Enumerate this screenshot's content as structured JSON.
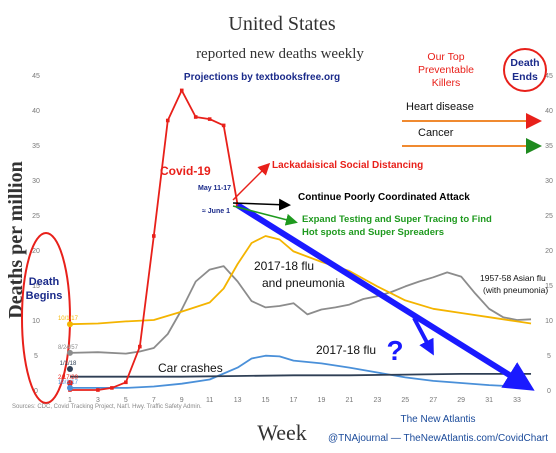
{
  "chart_data": {
    "type": "line",
    "title": "United States",
    "subtitle": "reported new deaths weekly",
    "projection_note": "Projections by textbooksfree.org",
    "xlabel": "Week",
    "ylabel": "Deaths per million",
    "xlim": [
      0,
      35
    ],
    "ylim": [
      0,
      45
    ],
    "x_ticks": [
      1,
      3,
      5,
      7,
      9,
      11,
      13,
      15,
      17,
      19,
      21,
      23,
      25,
      27,
      29,
      31,
      33
    ],
    "y_ticks": [
      0,
      5,
      10,
      15,
      20,
      25,
      30,
      35,
      40,
      45
    ],
    "grid": false,
    "series": [
      {
        "name": "Covid-19",
        "color": "#e8201a",
        "x": [
          1,
          3,
          4,
          5,
          6,
          7,
          8,
          9,
          10,
          11,
          12,
          13
        ],
        "y": [
          0,
          0,
          0.3,
          1.1,
          6.2,
          22,
          38.5,
          42.8,
          39,
          38.7,
          37.8,
          26.4
        ]
      },
      {
        "name": "2017-18 flu and pneumonia",
        "color": "#f4b400",
        "x": [
          1,
          3,
          5,
          7,
          9,
          11,
          12,
          13,
          14,
          15,
          16,
          17,
          19,
          21,
          23,
          25,
          27,
          29,
          31,
          33,
          34
        ],
        "y": [
          9.4,
          9.5,
          9.8,
          10.0,
          11.2,
          12.5,
          14.5,
          18.0,
          21.0,
          22.0,
          21.5,
          19.8,
          18.3,
          17.0,
          14.8,
          12.8,
          11.6,
          11.0,
          10.4,
          9.8,
          9.5
        ]
      },
      {
        "name": "1957-58 Asian flu (with pneumonia)",
        "color": "#8c8c8c",
        "x": [
          1,
          3,
          5,
          6,
          7,
          8,
          9,
          10,
          11,
          12,
          13,
          14,
          15,
          16,
          17,
          18,
          19,
          20,
          21,
          22,
          23,
          24,
          25,
          26,
          27,
          28,
          29,
          30,
          31,
          32,
          33,
          34
        ],
        "y": [
          5.3,
          5.4,
          5.2,
          5.5,
          6.0,
          8.0,
          11.5,
          15.5,
          17.2,
          17.7,
          15.5,
          12.7,
          11.8,
          12.0,
          12.4,
          10.8,
          11.5,
          11.8,
          12.2,
          13.0,
          13.4,
          14.0,
          14.8,
          15.5,
          16.1,
          16.8,
          16.2,
          13.8,
          11.6,
          10.4,
          10.0,
          10.1
        ]
      },
      {
        "name": "2017-18 flu",
        "color": "#4a90d9",
        "x": [
          1,
          3,
          5,
          7,
          9,
          11,
          13,
          14,
          15,
          16,
          17,
          19,
          21,
          23,
          25,
          27,
          29,
          31,
          33,
          34
        ],
        "y": [
          0.3,
          0.3,
          0.3,
          0.5,
          0.9,
          1.5,
          3.2,
          4.5,
          4.9,
          4.8,
          4.2,
          3.8,
          3.2,
          2.5,
          1.8,
          1.3,
          1.0,
          0.7,
          0.5,
          0.5
        ]
      },
      {
        "name": "Car crashes",
        "color": "#2f3f55",
        "x": [
          1,
          5,
          9,
          13,
          17,
          21,
          25,
          29,
          33,
          34
        ],
        "y": [
          1.9,
          1.9,
          1.9,
          2.0,
          2.1,
          2.1,
          2.2,
          2.3,
          2.3,
          2.3
        ]
      }
    ],
    "projection": {
      "label": "Continue Poorly Coordinated Attack",
      "color": "#1a1aff",
      "x": [
        13,
        34
      ],
      "y": [
        26.4,
        0
      ]
    },
    "start_markers": [
      {
        "label": "10/1/17",
        "x": 1,
        "y": 9.4,
        "color": "#f4b400"
      },
      {
        "label": "8/24/57",
        "x": 1,
        "y": 5.3,
        "color": "#8c8c8c"
      },
      {
        "label": "1/1/18",
        "x": 1,
        "y": 3.0,
        "color": "#2f3f55"
      },
      {
        "label": "2/17/20",
        "x": 1,
        "y": 1.0,
        "color": "#e8201a"
      },
      {
        "label": "10/1/17",
        "x": 1,
        "y": 0.3,
        "color": "#4a90d9"
      }
    ],
    "annotations": {
      "covid_label": "Covid-19",
      "lackadaisical": "Lackadaisical Social Distancing",
      "continue": "Continue Poorly Coordinated Attack",
      "expand_line1": "Expand Testing and Super Tracing to Find",
      "expand_line2": "Hot spots and Super Spreaders",
      "may_label": "May 11-17",
      "june_label": "≈ June 1",
      "flu_pneu_line1": "2017-18 flu",
      "flu_pneu_line2": "and pneumonia",
      "asian_line1": "1957-58 Asian flu",
      "asian_line2": "(with pneumonia)",
      "flu_label": "2017-18 flu",
      "car_label": "Car crashes",
      "question": "?",
      "death_begins_line1": "Death",
      "death_begins_line2": "Begins",
      "death_ends_line1": "Death",
      "death_ends_line2": "Ends"
    },
    "legend_box": {
      "title_line1": "Our Top",
      "title_line2": "Preventable",
      "title_line3": "Killers",
      "items": [
        {
          "label": "Heart disease",
          "color": "#e8201a"
        },
        {
          "label": "Cancer",
          "color": "#1f8a1f"
        }
      ]
    },
    "sources": "Sources: CDC, Covid Tracking Project, Nat'l. Hwy. Traffic Safety Admin.",
    "credit_line1": "The New Atlantis",
    "credit_line2": "@TNAjournal — TheNewAtlantis.com/CovidChart"
  }
}
